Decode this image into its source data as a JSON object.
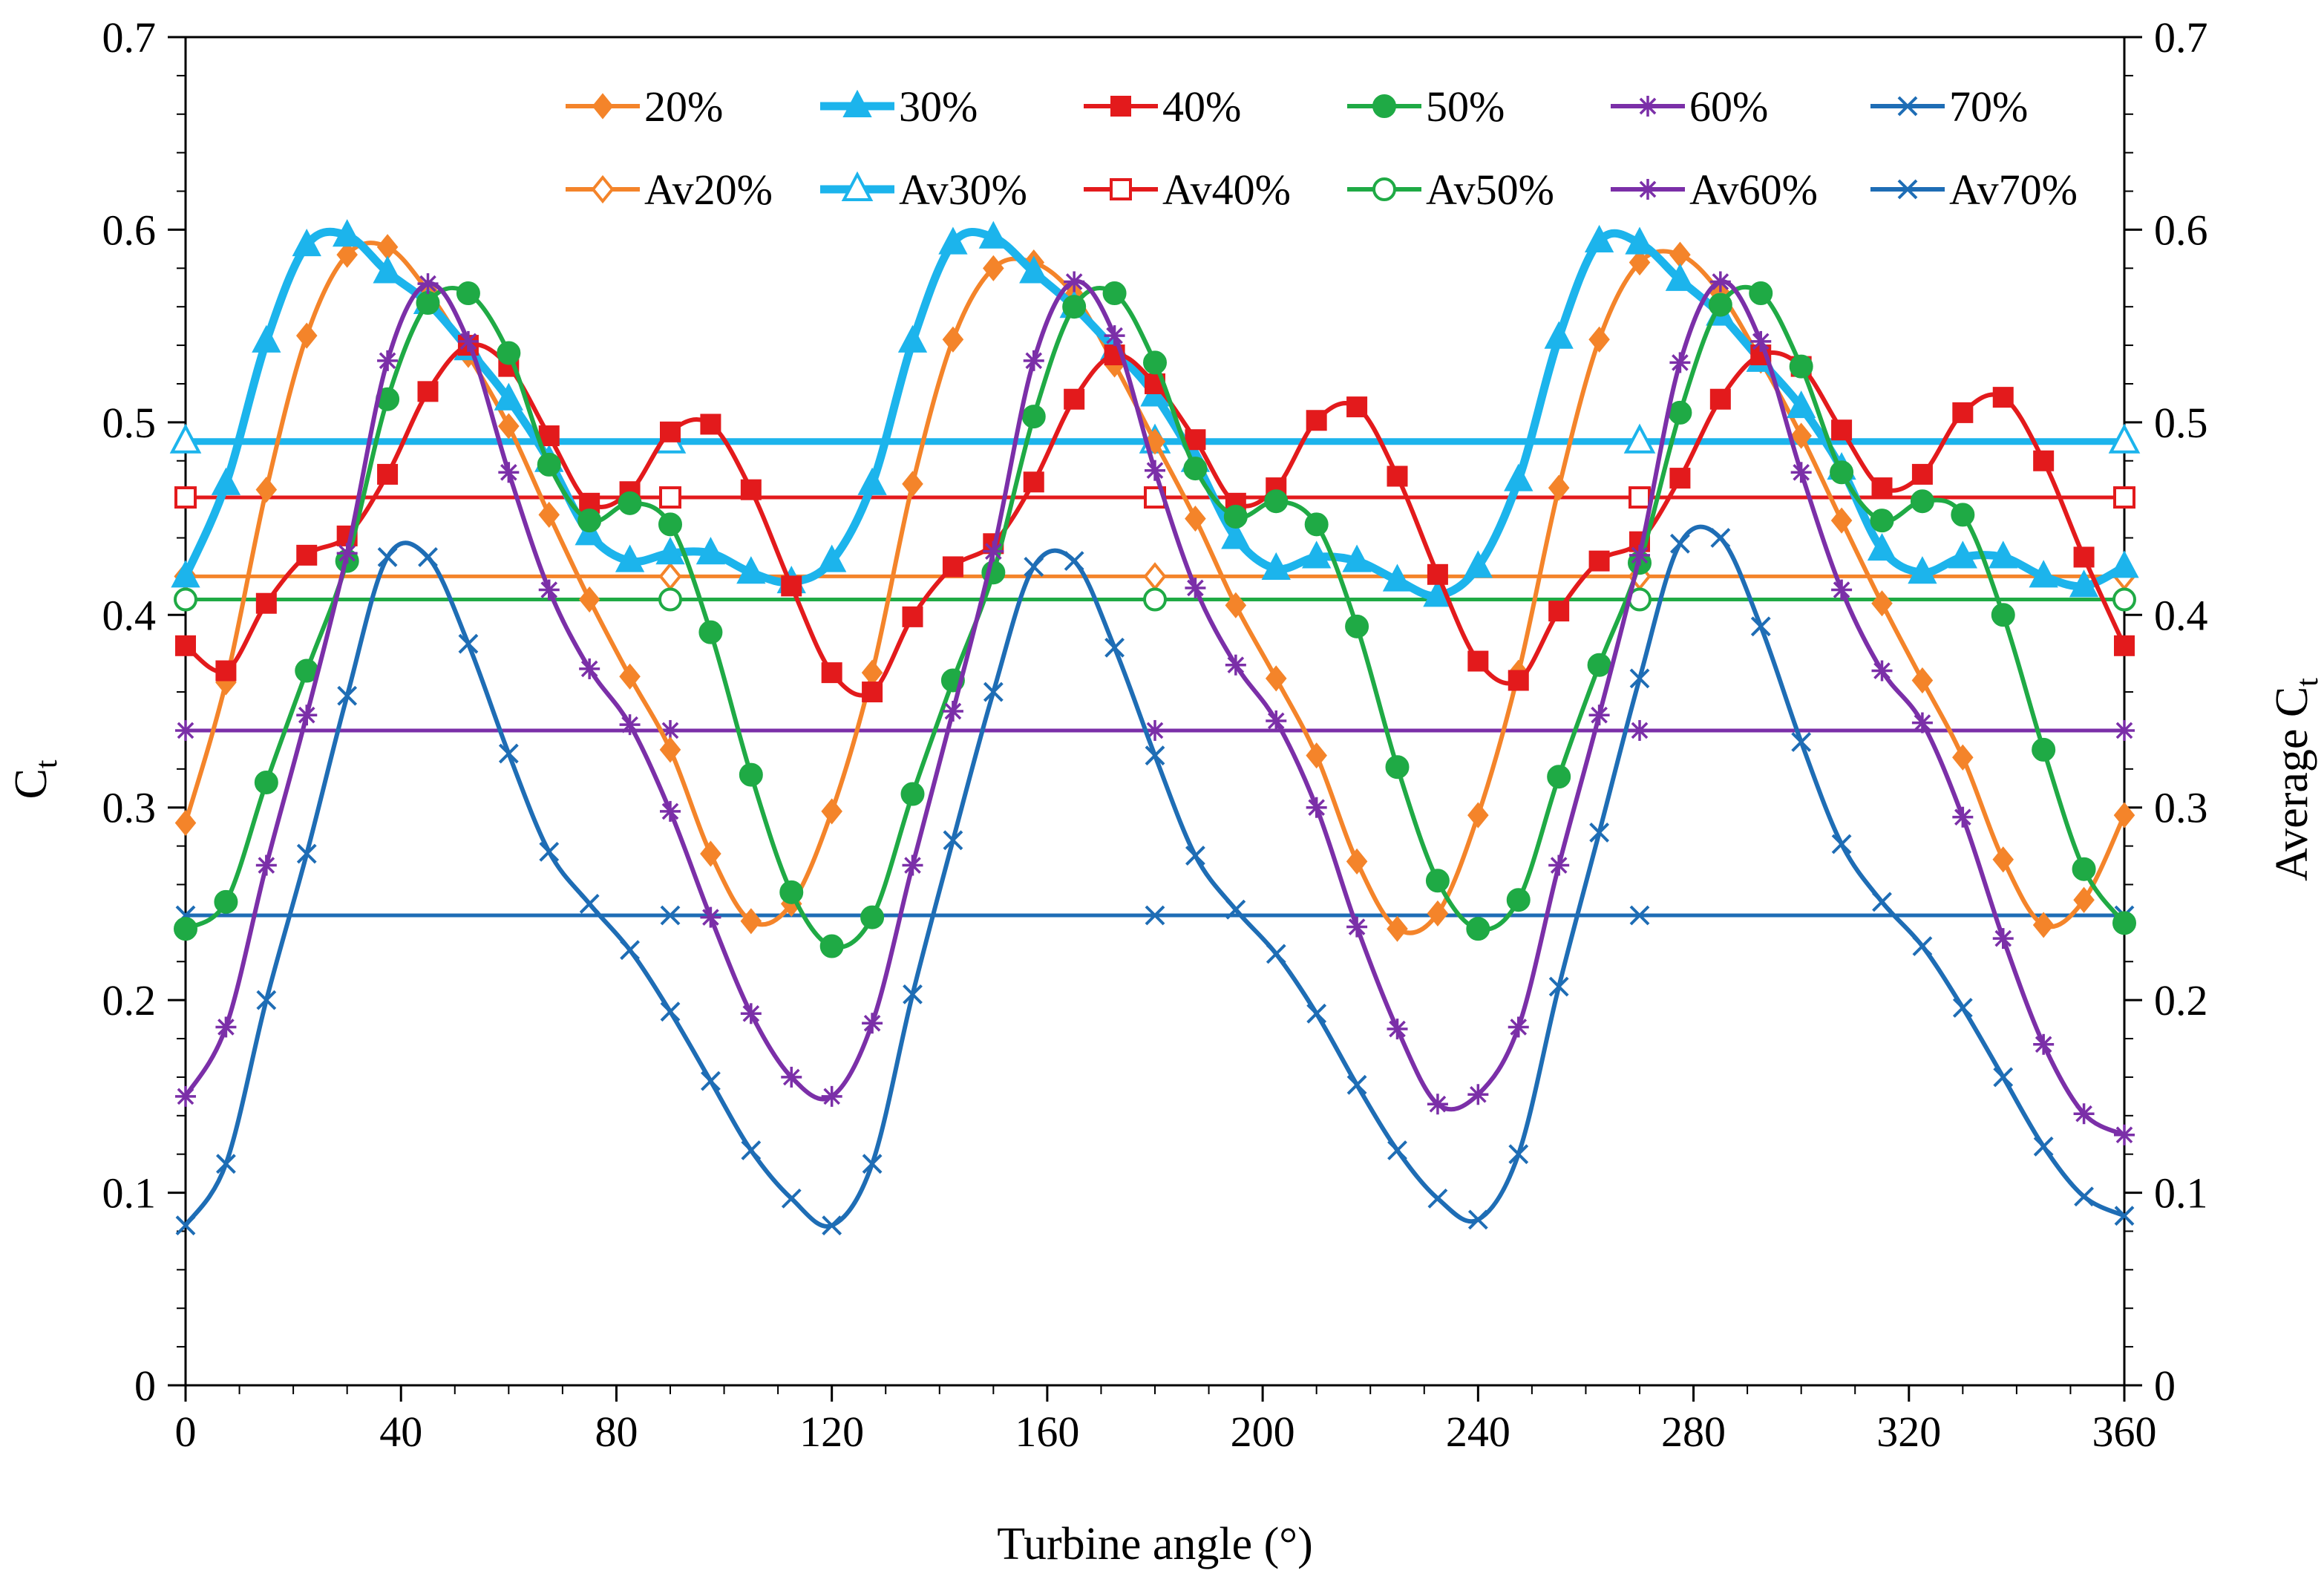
{
  "chart_data": {
    "type": "line",
    "title": "",
    "xlabel": "Turbine angle (°)",
    "ylabel": "C",
    "ylabel_sub": "t",
    "y2label": "Average C",
    "y2label_sub": "t",
    "xlim": [
      0,
      360
    ],
    "ylim": [
      0,
      0.7
    ],
    "y2lim": [
      0,
      0.7
    ],
    "xticks": [
      0,
      40,
      80,
      120,
      160,
      200,
      240,
      280,
      320,
      360
    ],
    "xtick_labels": [
      "0",
      "40",
      "80",
      "120",
      "160",
      "200",
      "240",
      "280",
      "320",
      "360"
    ],
    "yticks": [
      0,
      0.1,
      0.2,
      0.3,
      0.4,
      0.5,
      0.6,
      0.7
    ],
    "ytick_labels": [
      "0",
      "0.1",
      "0.2",
      "0.3",
      "0.4",
      "0.5",
      "0.6",
      "0.7"
    ],
    "y2tick_labels": [
      "0",
      "0.1",
      "0.2",
      "0.3",
      "0.4",
      "0.5",
      "0.6",
      "0.7"
    ],
    "grid": false,
    "legend_position": "top",
    "series": [
      {
        "name": "20%",
        "color": "#F4842A",
        "marker": "diamond-filled",
        "x": [
          0,
          7.5,
          15,
          22.5,
          30,
          37.5,
          45,
          52.5,
          60,
          67.5,
          75,
          82.5,
          90,
          97.5,
          105,
          112.5,
          120,
          127.5,
          135,
          142.5,
          150,
          157.5,
          165,
          172.5,
          180,
          187.5,
          195,
          202.5,
          210,
          217.5,
          225,
          232.5,
          240,
          247.5,
          255,
          262.5,
          270,
          277.5,
          285,
          292.5,
          300,
          307.5,
          315,
          322.5,
          330,
          337.5,
          345,
          352.5,
          360
        ],
        "values": [
          0.292,
          0.365,
          0.465,
          0.545,
          0.587,
          0.591,
          0.568,
          0.535,
          0.498,
          0.452,
          0.408,
          0.368,
          0.33,
          0.276,
          0.241,
          0.25,
          0.298,
          0.37,
          0.468,
          0.543,
          0.58,
          0.583,
          0.566,
          0.53,
          0.49,
          0.45,
          0.405,
          0.367,
          0.327,
          0.272,
          0.237,
          0.245,
          0.296,
          0.37,
          0.466,
          0.543,
          0.583,
          0.587,
          0.567,
          0.532,
          0.493,
          0.449,
          0.406,
          0.366,
          0.326,
          0.273,
          0.239,
          0.252,
          0.296
        ]
      },
      {
        "name": "30%",
        "color": "#1CB4EC",
        "marker": "triangle-filled",
        "x": [
          0,
          7.5,
          15,
          22.5,
          30,
          37.5,
          45,
          52.5,
          60,
          67.5,
          75,
          82.5,
          90,
          97.5,
          105,
          112.5,
          120,
          127.5,
          135,
          142.5,
          150,
          157.5,
          165,
          172.5,
          180,
          187.5,
          195,
          202.5,
          210,
          217.5,
          225,
          232.5,
          240,
          247.5,
          255,
          262.5,
          270,
          277.5,
          285,
          292.5,
          300,
          307.5,
          315,
          322.5,
          330,
          337.5,
          345,
          352.5,
          360
        ],
        "values": [
          0.42,
          0.468,
          0.542,
          0.592,
          0.597,
          0.578,
          0.562,
          0.538,
          0.512,
          0.48,
          0.442,
          0.428,
          0.432,
          0.432,
          0.422,
          0.417,
          0.428,
          0.468,
          0.542,
          0.593,
          0.596,
          0.578,
          0.56,
          0.538,
          0.514,
          0.48,
          0.44,
          0.424,
          0.43,
          0.428,
          0.418,
          0.41,
          0.425,
          0.47,
          0.544,
          0.594,
          0.593,
          0.574,
          0.556,
          0.532,
          0.508,
          0.476,
          0.434,
          0.422,
          0.43,
          0.43,
          0.42,
          0.415,
          0.425
        ]
      },
      {
        "name": "40%",
        "color": "#E31A1C",
        "marker": "square-filled",
        "x": [
          0,
          7.5,
          15,
          22.5,
          30,
          37.5,
          45,
          52.5,
          60,
          67.5,
          75,
          82.5,
          90,
          97.5,
          105,
          112.5,
          120,
          127.5,
          135,
          142.5,
          150,
          157.5,
          165,
          172.5,
          180,
          187.5,
          195,
          202.5,
          210,
          217.5,
          225,
          232.5,
          240,
          247.5,
          255,
          262.5,
          270,
          277.5,
          285,
          292.5,
          300,
          307.5,
          315,
          322.5,
          330,
          337.5,
          345,
          352.5,
          360
        ],
        "values": [
          0.384,
          0.371,
          0.406,
          0.431,
          0.441,
          0.473,
          0.516,
          0.54,
          0.529,
          0.493,
          0.458,
          0.464,
          0.495,
          0.499,
          0.465,
          0.415,
          0.37,
          0.36,
          0.399,
          0.425,
          0.437,
          0.469,
          0.512,
          0.535,
          0.52,
          0.491,
          0.458,
          0.466,
          0.501,
          0.508,
          0.472,
          0.421,
          0.376,
          0.366,
          0.402,
          0.428,
          0.438,
          0.471,
          0.512,
          0.535,
          0.529,
          0.496,
          0.466,
          0.473,
          0.505,
          0.513,
          0.48,
          0.43,
          0.384
        ]
      },
      {
        "name": "50%",
        "color": "#1FAA45",
        "marker": "circle-filled",
        "x": [
          0,
          7.5,
          15,
          22.5,
          30,
          37.5,
          45,
          52.5,
          60,
          67.5,
          75,
          82.5,
          90,
          97.5,
          105,
          112.5,
          120,
          127.5,
          135,
          142.5,
          150,
          157.5,
          165,
          172.5,
          180,
          187.5,
          195,
          202.5,
          210,
          217.5,
          225,
          232.5,
          240,
          247.5,
          255,
          262.5,
          270,
          277.5,
          285,
          292.5,
          300,
          307.5,
          315,
          322.5,
          330,
          337.5,
          345,
          352.5,
          360
        ],
        "values": [
          0.237,
          0.251,
          0.313,
          0.371,
          0.428,
          0.512,
          0.562,
          0.567,
          0.536,
          0.478,
          0.449,
          0.458,
          0.447,
          0.391,
          0.317,
          0.256,
          0.228,
          0.243,
          0.307,
          0.366,
          0.422,
          0.503,
          0.56,
          0.567,
          0.531,
          0.476,
          0.451,
          0.459,
          0.447,
          0.394,
          0.321,
          0.262,
          0.237,
          0.252,
          0.316,
          0.374,
          0.427,
          0.505,
          0.561,
          0.567,
          0.529,
          0.474,
          0.449,
          0.459,
          0.452,
          0.4,
          0.33,
          0.268,
          0.24
        ]
      },
      {
        "name": "60%",
        "color": "#7B2FA8",
        "marker": "star",
        "x": [
          0,
          7.5,
          15,
          22.5,
          30,
          37.5,
          45,
          52.5,
          60,
          67.5,
          75,
          82.5,
          90,
          97.5,
          105,
          112.5,
          120,
          127.5,
          135,
          142.5,
          150,
          157.5,
          165,
          172.5,
          180,
          187.5,
          195,
          202.5,
          210,
          217.5,
          225,
          232.5,
          240,
          247.5,
          255,
          262.5,
          270,
          277.5,
          285,
          292.5,
          300,
          307.5,
          315,
          322.5,
          330,
          337.5,
          345,
          352.5,
          360
        ],
        "values": [
          0.15,
          0.186,
          0.27,
          0.348,
          0.432,
          0.532,
          0.572,
          0.542,
          0.474,
          0.413,
          0.372,
          0.343,
          0.298,
          0.243,
          0.193,
          0.16,
          0.15,
          0.188,
          0.27,
          0.35,
          0.433,
          0.532,
          0.573,
          0.545,
          0.475,
          0.414,
          0.374,
          0.345,
          0.3,
          0.238,
          0.185,
          0.146,
          0.151,
          0.186,
          0.27,
          0.348,
          0.431,
          0.531,
          0.573,
          0.542,
          0.474,
          0.413,
          0.371,
          0.344,
          0.295,
          0.232,
          0.177,
          0.141,
          0.13
        ]
      },
      {
        "name": "70%",
        "color": "#1E6DB5",
        "marker": "x",
        "x": [
          0,
          7.5,
          15,
          22.5,
          30,
          37.5,
          45,
          52.5,
          60,
          67.5,
          75,
          82.5,
          90,
          97.5,
          105,
          112.5,
          120,
          127.5,
          135,
          142.5,
          150,
          157.5,
          165,
          172.5,
          180,
          187.5,
          195,
          202.5,
          210,
          217.5,
          225,
          232.5,
          240,
          247.5,
          255,
          262.5,
          270,
          277.5,
          285,
          292.5,
          300,
          307.5,
          315,
          322.5,
          330,
          337.5,
          345,
          352.5,
          360
        ],
        "values": [
          0.083,
          0.115,
          0.2,
          0.276,
          0.358,
          0.43,
          0.43,
          0.385,
          0.328,
          0.277,
          0.25,
          0.226,
          0.194,
          0.158,
          0.122,
          0.097,
          0.083,
          0.115,
          0.203,
          0.283,
          0.36,
          0.425,
          0.428,
          0.383,
          0.327,
          0.275,
          0.247,
          0.224,
          0.193,
          0.156,
          0.122,
          0.097,
          0.086,
          0.12,
          0.207,
          0.287,
          0.367,
          0.437,
          0.44,
          0.394,
          0.334,
          0.281,
          0.251,
          0.228,
          0.196,
          0.16,
          0.124,
          0.098,
          0.088
        ]
      },
      {
        "name": "Av20%",
        "color": "#F4842A",
        "marker": "diamond-open",
        "x": [
          0,
          90,
          180,
          270,
          360
        ],
        "values": [
          0.42,
          0.42,
          0.42,
          0.42,
          0.42
        ]
      },
      {
        "name": "Av30%",
        "color": "#1CB4EC",
        "marker": "triangle-open",
        "x": [
          0,
          90,
          180,
          270,
          360
        ],
        "values": [
          0.49,
          0.49,
          0.49,
          0.49,
          0.49
        ]
      },
      {
        "name": "Av40%",
        "color": "#E31A1C",
        "marker": "square-open",
        "x": [
          0,
          90,
          180,
          270,
          360
        ],
        "values": [
          0.461,
          0.461,
          0.461,
          0.461,
          0.461
        ]
      },
      {
        "name": "Av50%",
        "color": "#1FAA45",
        "marker": "circle-open",
        "x": [
          0,
          90,
          180,
          270,
          360
        ],
        "values": [
          0.408,
          0.408,
          0.408,
          0.408,
          0.408
        ]
      },
      {
        "name": "Av60%",
        "color": "#7B2FA8",
        "marker": "star",
        "x": [
          0,
          90,
          180,
          270,
          360
        ],
        "values": [
          0.34,
          0.34,
          0.34,
          0.34,
          0.34
        ]
      },
      {
        "name": "Av70%",
        "color": "#1E6DB5",
        "marker": "x",
        "x": [
          0,
          90,
          180,
          270,
          360
        ],
        "values": [
          0.244,
          0.244,
          0.244,
          0.244,
          0.244
        ]
      }
    ]
  }
}
